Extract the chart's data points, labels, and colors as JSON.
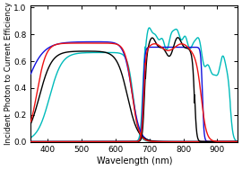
{
  "title": "",
  "xlabel": "Wavelength (nm)",
  "ylabel": "Incident Photon to Current Efficiency",
  "xlim": [
    350,
    960
  ],
  "ylim": [
    0.0,
    1.02
  ],
  "yticks": [
    0.0,
    0.2,
    0.4,
    0.6,
    0.8,
    1.0
  ],
  "xticks": [
    400,
    500,
    600,
    700,
    800,
    900
  ],
  "background_color": "#ffffff",
  "linewidth": 1.0
}
